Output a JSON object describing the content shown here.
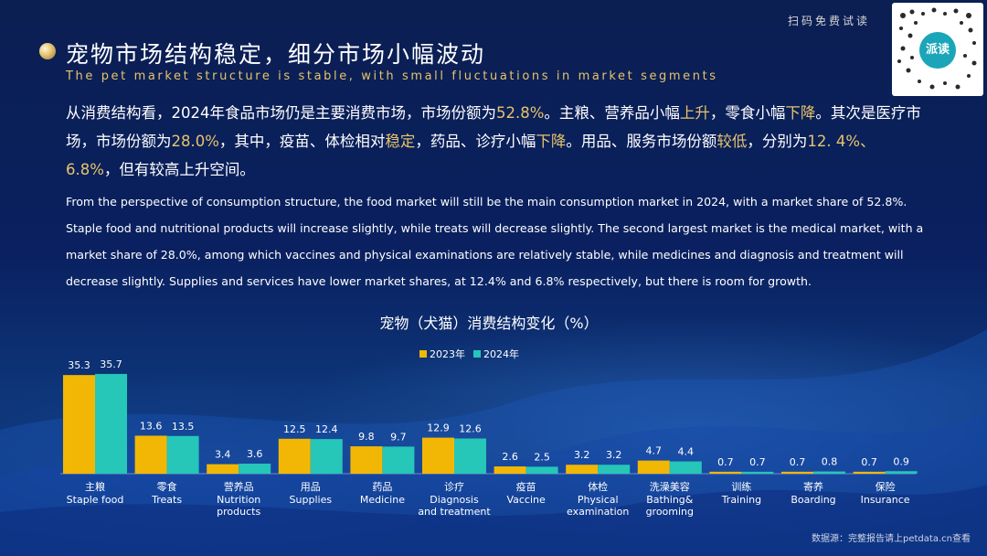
{
  "header": {
    "title_cn": "宠物市场结构稳定，细分市场小幅波动",
    "title_en": "The pet market structure is stable, with small fluctuations in market segments",
    "promo_text": "扫码免费试读",
    "qr_label": "派读"
  },
  "body": {
    "para_cn_segments": [
      {
        "t": "从消费结构看，2024年食品市场仍是主要消费市场，市场份额为",
        "hl": false
      },
      {
        "t": "52.8%",
        "hl": true
      },
      {
        "t": "。主粮、营养品小幅",
        "hl": false
      },
      {
        "t": "上升",
        "hl": true
      },
      {
        "t": "，零食小幅",
        "hl": false
      },
      {
        "t": "下降",
        "hl": true
      },
      {
        "t": "。其次是医疗市场，市场份额为",
        "hl": false
      },
      {
        "t": "28.0%",
        "hl": true
      },
      {
        "t": "，其中，疫苗、体检相对",
        "hl": false
      },
      {
        "t": "稳定",
        "hl": true
      },
      {
        "t": "，药品、诊疗小幅",
        "hl": false
      },
      {
        "t": "下降",
        "hl": true
      },
      {
        "t": "。用品、服务市场份额",
        "hl": false
      },
      {
        "t": "较低",
        "hl": true
      },
      {
        "t": "，分别为",
        "hl": false
      },
      {
        "t": "12. 4%、6.8%",
        "hl": true
      },
      {
        "t": "，但有较高上升空间。",
        "hl": false
      }
    ],
    "para_en": "From the perspective of consumption structure, the food market will still be the main consumption market in 2024, with a market share of 52.8%. Staple food and nutritional products will increase slightly, while treats will decrease slightly. The second largest market is the medical market, with a market share of 28.0%, among which vaccines and physical examinations are relatively stable, while medicines and diagnosis and treatment will decrease slightly. Supplies and services have lower market shares, at 12.4% and 6.8% respectively, but there is room for growth."
  },
  "source": "数据源：完整报告请上petdata.cn查看",
  "colors": {
    "series_2023": "#f2b705",
    "series_2024": "#26c6b8",
    "text": "#ffffff",
    "highlight": "#e6c46a"
  },
  "chart_data": {
    "type": "bar",
    "title": "宠物（犬猫）消费结构变化（%）",
    "legend_position": "top-center",
    "categories": [
      {
        "cn": "主粮",
        "en": "Staple food"
      },
      {
        "cn": "零食",
        "en": "Treats"
      },
      {
        "cn": "营养品",
        "en": "Nutrition products"
      },
      {
        "cn": "用品",
        "en": "Supplies"
      },
      {
        "cn": "药品",
        "en": "Medicine"
      },
      {
        "cn": "诊疗",
        "en": "Diagnosis and treatment"
      },
      {
        "cn": "疫苗",
        "en": "Vaccine"
      },
      {
        "cn": "体检",
        "en": "Physical examination"
      },
      {
        "cn": "洗澡美容",
        "en": "Bathing& grooming"
      },
      {
        "cn": "训练",
        "en": "Training"
      },
      {
        "cn": "寄养",
        "en": "Boarding"
      },
      {
        "cn": "保险",
        "en": "Insurance"
      }
    ],
    "series": [
      {
        "name": "2023年",
        "values": [
          35.3,
          13.6,
          3.4,
          12.5,
          9.8,
          12.9,
          2.6,
          3.2,
          4.7,
          0.7,
          0.7,
          0.7
        ]
      },
      {
        "name": "2024年",
        "values": [
          35.7,
          13.5,
          3.6,
          12.4,
          9.7,
          12.6,
          2.5,
          3.2,
          4.4,
          0.7,
          0.8,
          0.9
        ]
      }
    ],
    "ylim": [
      0,
      36
    ]
  }
}
